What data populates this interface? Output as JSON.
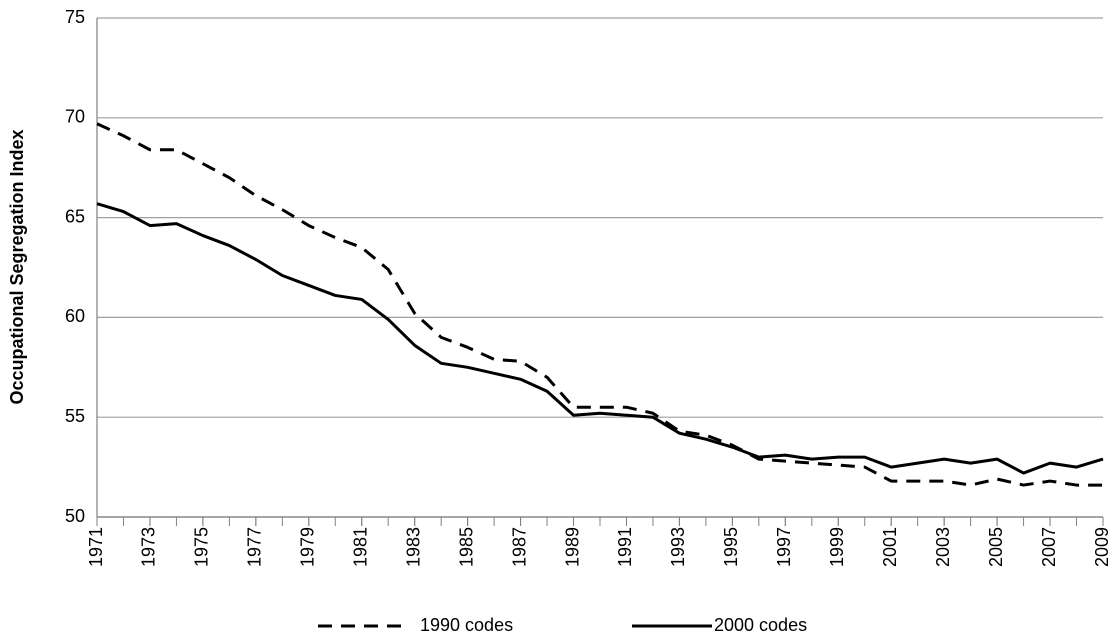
{
  "chart_data": {
    "type": "line",
    "y_label": "Occupational Segregation Index",
    "x": [
      1971,
      1972,
      1973,
      1974,
      1975,
      1976,
      1977,
      1978,
      1979,
      1980,
      1981,
      1982,
      1983,
      1984,
      1985,
      1986,
      1987,
      1988,
      1989,
      1990,
      1991,
      1992,
      1993,
      1994,
      1995,
      1996,
      1997,
      1998,
      1999,
      2000,
      2001,
      2002,
      2003,
      2004,
      2005,
      2006,
      2007,
      2008,
      2009
    ],
    "xlim": [
      1971,
      2009
    ],
    "xticks": [
      1971,
      1973,
      1975,
      1977,
      1979,
      1981,
      1983,
      1985,
      1987,
      1989,
      1991,
      1993,
      1995,
      1997,
      1999,
      2001,
      2003,
      2005,
      2007,
      2009
    ],
    "ylim": [
      50,
      75
    ],
    "yticks": [
      50,
      55,
      60,
      65,
      70,
      75
    ],
    "grid": true,
    "legend": "bottom",
    "series": [
      {
        "name": "1990 codes",
        "color": "#000000",
        "style": "dashed",
        "values": [
          69.7,
          69.1,
          68.4,
          68.4,
          67.7,
          67.0,
          66.1,
          65.4,
          64.6,
          64.0,
          63.5,
          62.4,
          60.2,
          59.0,
          58.5,
          57.9,
          57.8,
          57.0,
          55.5,
          55.5,
          55.5,
          55.2,
          54.3,
          54.1,
          53.6,
          52.9,
          52.8,
          52.7,
          52.6,
          52.5,
          51.8,
          51.8,
          51.8,
          51.6,
          51.9,
          51.6,
          51.8,
          51.6,
          51.6
        ]
      },
      {
        "name": "2000 codes",
        "color": "#000000",
        "style": "solid",
        "values": [
          65.7,
          65.3,
          64.6,
          64.7,
          64.1,
          63.6,
          62.9,
          62.1,
          61.6,
          61.1,
          60.9,
          59.9,
          58.6,
          57.7,
          57.5,
          57.2,
          56.9,
          56.3,
          55.1,
          55.2,
          55.1,
          55.0,
          54.2,
          53.9,
          53.5,
          53.0,
          53.1,
          52.9,
          53.0,
          53.0,
          52.5,
          52.7,
          52.9,
          52.7,
          52.9,
          52.2,
          52.7,
          52.5,
          52.9
        ]
      }
    ]
  }
}
